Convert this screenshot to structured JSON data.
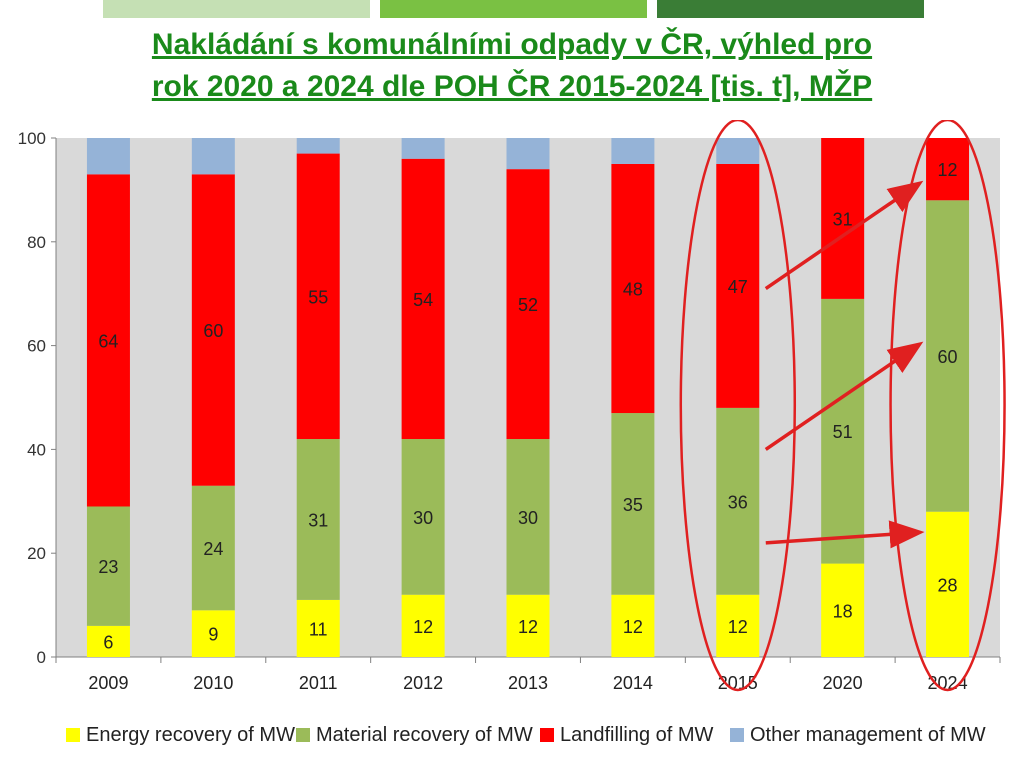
{
  "slide": {
    "title_line_1": "Nakládání s komunálními odpady v ČR, výhled pro",
    "title_line_2": "rok 2020 a 2024 dle POH ČR 2015-2024 [tis. t], MŽP",
    "decor_colors": [
      "#c5e0b4",
      "#7ac143",
      "#3a7d36"
    ]
  },
  "chart_data": {
    "type": "bar",
    "stacked": true,
    "categories": [
      "2009",
      "2010",
      "2011",
      "2012",
      "2013",
      "2014",
      "2015",
      "2020",
      "2024"
    ],
    "ylim": [
      0,
      100
    ],
    "yticks": [
      0,
      20,
      40,
      60,
      80,
      100
    ],
    "grid": false,
    "legend_position": "bottom",
    "series": [
      {
        "name": "Energy recovery of MW",
        "color": "#ffff00",
        "values": [
          6,
          9,
          11,
          12,
          12,
          12,
          12,
          18,
          28
        ],
        "labels": [
          "6",
          "9",
          "11",
          "12",
          "12",
          "12",
          "12",
          "18",
          "28"
        ]
      },
      {
        "name": "Material recovery of MW",
        "color": "#9bbb59",
        "values": [
          23,
          24,
          31,
          30,
          30,
          35,
          36,
          51,
          60
        ],
        "labels": [
          "23",
          "24",
          "31",
          "30",
          "30",
          "35",
          "36",
          "51",
          "60"
        ]
      },
      {
        "name": "Landfilling of MW",
        "color": "#ff0000",
        "values": [
          64,
          60,
          55,
          54,
          52,
          48,
          47,
          31,
          12
        ],
        "labels": [
          "64",
          "60",
          "55",
          "54",
          "52",
          "48",
          "47",
          "31",
          "12"
        ]
      },
      {
        "name": "Other management of MW",
        "color": "#95b3d7",
        "values": [
          7,
          7,
          3,
          4,
          6,
          5,
          5,
          0,
          0
        ],
        "labels": [
          "",
          "",
          "",
          "",
          "",
          "",
          "",
          "",
          ""
        ]
      }
    ],
    "annotations": {
      "highlight_ellipses_around": [
        "2015",
        "2024"
      ],
      "arrows_from": "2015",
      "arrows_to": "2024",
      "annotation_color": "#e02020"
    }
  }
}
